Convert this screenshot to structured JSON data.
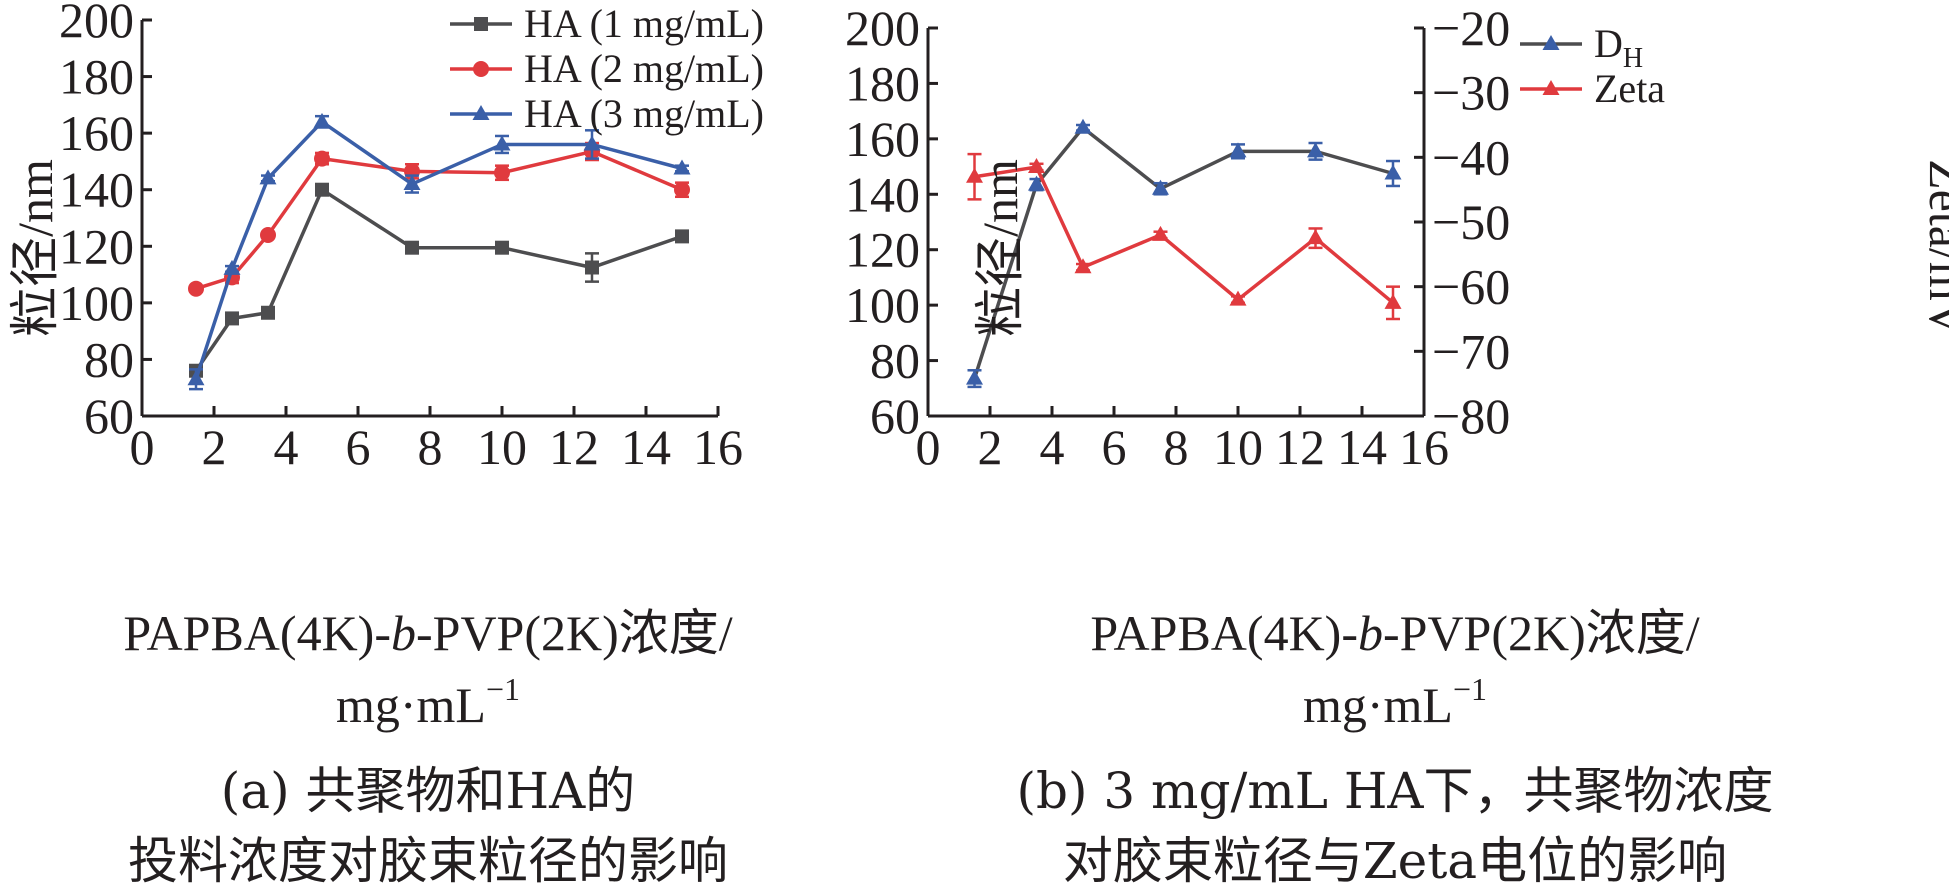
{
  "chart_data": [
    {
      "type": "line",
      "title": "",
      "xlabel_line1": "PAPBA(4K)-",
      "xlabel_italic": "b",
      "xlabel_line1_tail": "-PVP(2K)浓度/",
      "xlabel_line2": "mg·mL",
      "xlabel_line2_sup": "−1",
      "ylabel": "粒径/nm",
      "xlim": [
        0,
        16
      ],
      "ylim": [
        60,
        200
      ],
      "xticks": [
        "0",
        "2",
        "4",
        "6",
        "8",
        "10",
        "12",
        "14",
        "16"
      ],
      "yticks": [
        "60",
        "80",
        "100",
        "120",
        "140",
        "160",
        "180",
        "200"
      ],
      "legend": "top-center",
      "caption_line1": "(a) 共聚物和HA的",
      "caption_line2": "投料浓度对胶束粒径的影响",
      "series": [
        {
          "name": "HA (1 mg/mL)",
          "color": "#4d4d4f",
          "marker": "square",
          "x": [
            1.5,
            2.5,
            3.5,
            5,
            7.5,
            10,
            12.5,
            15
          ],
          "y": [
            76,
            94.5,
            96.5,
            140,
            119.5,
            119.5,
            112.5,
            123.5
          ],
          "err": [
            1,
            1,
            1,
            1,
            1,
            1.5,
            5,
            1
          ]
        },
        {
          "name": "HA (2 mg/mL)",
          "color": "#e03a3e",
          "marker": "circle",
          "x": [
            1.5,
            2.5,
            3.5,
            5,
            7.5,
            10,
            12.5,
            15
          ],
          "y": [
            105,
            109,
            124,
            151,
            146.5,
            146,
            153.5,
            140
          ],
          "err": [
            1,
            2,
            1,
            2,
            2.5,
            2.5,
            3,
            2.5
          ]
        },
        {
          "name": "HA (3 mg/mL)",
          "color": "#3a5fa8",
          "marker": "triangle",
          "x": [
            1.5,
            2.5,
            3.5,
            5,
            7.5,
            10,
            12.5,
            15
          ],
          "y": [
            73,
            112,
            144,
            164,
            142,
            156,
            156,
            147.5
          ],
          "err": [
            3.5,
            1,
            1,
            2,
            3,
            3,
            5,
            1
          ]
        }
      ]
    },
    {
      "type": "line",
      "title": "",
      "xlabel_line1": "PAPBA(4K)-",
      "xlabel_italic": "b",
      "xlabel_line1_tail": "-PVP(2K)浓度/",
      "xlabel_line2": "mg·mL",
      "xlabel_line2_sup": "−1",
      "ylabel": "粒径/nm",
      "y2label": "Zeta/mV",
      "xlim": [
        0,
        16
      ],
      "ylim": [
        60,
        200
      ],
      "y2lim": [
        -80,
        -20
      ],
      "xticks": [
        "0",
        "2",
        "4",
        "6",
        "8",
        "10",
        "12",
        "14",
        "16"
      ],
      "yticks": [
        "60",
        "80",
        "100",
        "120",
        "140",
        "160",
        "180",
        "200"
      ],
      "y2ticks": [
        "−80",
        "−70",
        "−60",
        "−50",
        "−40",
        "−30",
        "−20"
      ],
      "legend": "top-right",
      "caption_line1": "(b) 3 mg/mL HA下，共聚物浓度",
      "caption_line2": "对胶束粒径与Zeta电位的影响",
      "series": [
        {
          "name": "D",
          "name_sub": "H",
          "color": "#4d4d4f",
          "marker_color": "#3a5fa8",
          "marker": "triangle",
          "axis": "left",
          "x": [
            1.5,
            3.5,
            5,
            7.5,
            10,
            12.5,
            15
          ],
          "y": [
            73.5,
            143.5,
            164,
            142,
            155.5,
            155.5,
            147.5
          ],
          "err": [
            3,
            2,
            1,
            2,
            2.5,
            3,
            4.5
          ]
        },
        {
          "name": "Zeta",
          "color": "#e03a3e",
          "marker": "triangle",
          "axis": "right",
          "x": [
            1.5,
            3.5,
            5,
            7.5,
            10,
            12.5,
            15
          ],
          "y": [
            -43,
            -41.5,
            -57,
            -52,
            -62,
            -52.5,
            -62.5
          ],
          "err": [
            3.5,
            0.5,
            0.5,
            0.5,
            0.5,
            1.5,
            2.5
          ]
        }
      ]
    }
  ]
}
